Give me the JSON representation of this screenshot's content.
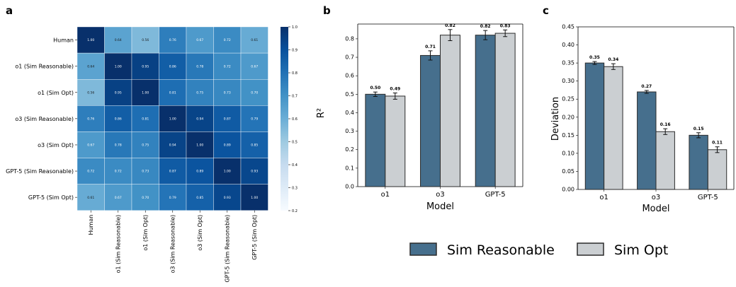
{
  "panels": {
    "a": "a",
    "b": "b",
    "c": "c"
  },
  "chart_data": [
    {
      "type": "heatmap",
      "panel": "a",
      "rows": [
        "Human",
        "o1 (Sim Reasonable)",
        "o1 (Sim Opt)",
        "o3 (Sim Reasonable)",
        "o3 (Sim Opt)",
        "GPT-5 (Sim Reasonable)",
        "GPT-5 (Sim Opt)"
      ],
      "cols": [
        "Human",
        "o1 (Sim Reasonable)",
        "o1 (Sim Opt)",
        "o3 (Sim Reasonable)",
        "o3 (Sim Opt)",
        "GPT-5 (Sim Reasonable)",
        "GPT-5 (Sim Opt)"
      ],
      "values": [
        [
          1.0,
          0.64,
          0.56,
          0.76,
          0.67,
          0.72,
          0.61
        ],
        [
          0.64,
          1.0,
          0.95,
          0.86,
          0.78,
          0.72,
          0.67
        ],
        [
          0.56,
          0.95,
          1.0,
          0.81,
          0.75,
          0.73,
          0.7
        ],
        [
          0.76,
          0.86,
          0.81,
          1.0,
          0.94,
          0.87,
          0.79
        ],
        [
          0.67,
          0.78,
          0.75,
          0.94,
          1.0,
          0.89,
          0.85
        ],
        [
          0.72,
          0.72,
          0.73,
          0.87,
          0.89,
          1.0,
          0.93
        ],
        [
          0.61,
          0.67,
          0.7,
          0.79,
          0.85,
          0.93,
          1.0
        ]
      ],
      "colorbar": {
        "min": 0.2,
        "max": 1.0,
        "ticks": [
          "0.2",
          "0.3",
          "0.4",
          "0.5",
          "0.6",
          "0.7",
          "0.8",
          "0.9",
          "1.0"
        ]
      },
      "colormap": "Blues"
    },
    {
      "type": "bar",
      "panel": "b",
      "categories": [
        "o1",
        "o3",
        "GPT-5"
      ],
      "series": [
        {
          "name": "Sim Reasonable",
          "values": [
            0.5,
            0.71,
            0.82
          ],
          "labels": [
            "0.50",
            "0.71",
            "0.82"
          ],
          "errors": [
            0.012,
            0.025,
            0.025
          ]
        },
        {
          "name": "Sim Opt",
          "values": [
            0.49,
            0.82,
            0.83
          ],
          "labels": [
            "0.49",
            "0.82",
            "0.83"
          ],
          "errors": [
            0.017,
            0.03,
            0.018
          ]
        }
      ],
      "xlabel": "Model",
      "ylabel": "R²",
      "ylim": [
        0,
        0.88
      ],
      "yticks": [
        "0.0",
        "0.1",
        "0.2",
        "0.3",
        "0.4",
        "0.5",
        "0.6",
        "0.7",
        "0.8"
      ],
      "ytick_values": [
        0,
        0.1,
        0.2,
        0.3,
        0.4,
        0.5,
        0.6,
        0.7,
        0.8
      ]
    },
    {
      "type": "bar",
      "panel": "c",
      "categories": [
        "o1",
        "o3",
        "GPT-5"
      ],
      "series": [
        {
          "name": "Sim Reasonable",
          "values": [
            0.35,
            0.27,
            0.15
          ],
          "labels": [
            "0.35",
            "0.27",
            "0.15"
          ],
          "errors": [
            0.004,
            0.004,
            0.007
          ]
        },
        {
          "name": "Sim Opt",
          "values": [
            0.34,
            0.16,
            0.11
          ],
          "labels": [
            "0.34",
            "0.16",
            "0.11"
          ],
          "errors": [
            0.008,
            0.008,
            0.008
          ]
        }
      ],
      "xlabel": "Model",
      "ylabel": "Deviation",
      "ylim": [
        0,
        0.45
      ],
      "yticks": [
        "0.00",
        "0.05",
        "0.10",
        "0.15",
        "0.20",
        "0.25",
        "0.30",
        "0.35",
        "0.40",
        "0.45"
      ],
      "ytick_values": [
        0,
        0.05,
        0.1,
        0.15,
        0.2,
        0.25,
        0.3,
        0.35,
        0.4,
        0.45
      ]
    }
  ],
  "legend": {
    "placement": "bottom-right",
    "items": [
      {
        "label": "Sim Reasonable",
        "color": "#466f8d"
      },
      {
        "label": "Sim Opt",
        "color": "#cbcfd2"
      }
    ]
  },
  "colors": {
    "bar_dark": "#466f8d",
    "bar_light": "#cbcfd2",
    "edge": "#2b2b2b"
  }
}
